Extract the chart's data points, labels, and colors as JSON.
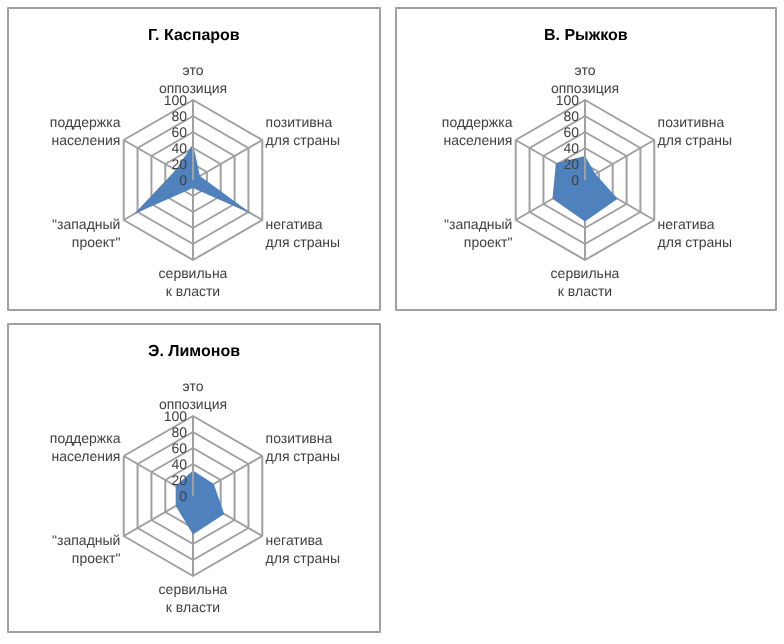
{
  "chart_data": [
    {
      "type": "radar",
      "title": "Г. Каспаров",
      "categories": [
        "это оппозиция",
        "позитивна для страны",
        "негатива для страны",
        "сервильна к власти",
        "\"западный проект\"",
        "поддержка населения"
      ],
      "series": [
        {
          "color": "#4f81bd",
          "values": [
            45,
            10,
            85,
            10,
            85,
            25
          ]
        }
      ],
      "ylim": [
        0,
        100
      ],
      "yticks": [
        0,
        20,
        40,
        60,
        80,
        100
      ],
      "grid": true
    },
    {
      "type": "radar",
      "title": "В. Рыжков",
      "categories": [
        "это оппозиция",
        "позитивна для страны",
        "негатива для страны",
        "сервильна к власти",
        "\"западный проект\"",
        "поддержка населения"
      ],
      "series": [
        {
          "color": "#4f81bd",
          "values": [
            30,
            15,
            47,
            52,
            47,
            42
          ]
        }
      ],
      "ylim": [
        0,
        100
      ],
      "yticks": [
        0,
        20,
        40,
        60,
        80,
        100
      ],
      "grid": true
    },
    {
      "type": "radar",
      "title": "Э. Лимонов",
      "categories": [
        "это оппозиция",
        "позитивна для страны",
        "негатива для страны",
        "сервильна к власти",
        "\"западный проект\"",
        "поддержка населения"
      ],
      "series": [
        {
          "color": "#4f81bd",
          "values": [
            32,
            30,
            45,
            48,
            25,
            25
          ]
        }
      ],
      "ylim": [
        0,
        100
      ],
      "yticks": [
        0,
        20,
        40,
        60,
        80,
        100
      ],
      "grid": true
    }
  ]
}
